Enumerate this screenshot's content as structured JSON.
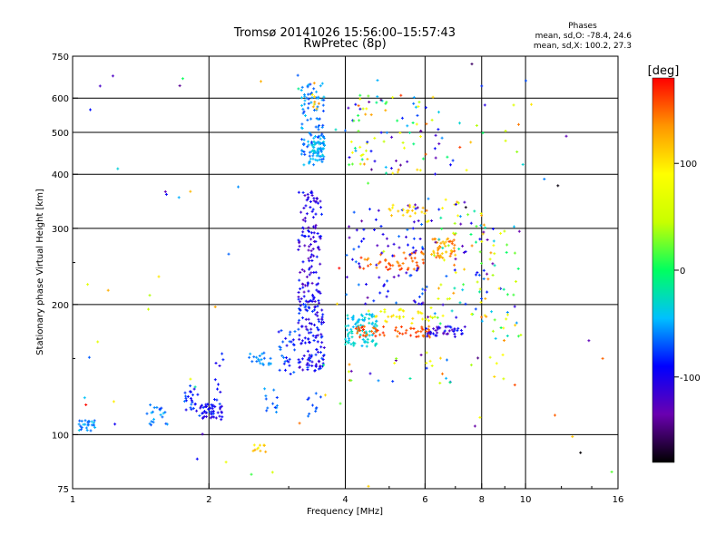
{
  "chart_data": {
    "type": "scatter",
    "title": "Tromsø 20141026 15:56:00–15:57:43",
    "subtitle": "RwPretec (8p)",
    "xlabel": "Frequency [MHz]",
    "ylabel": "Stationary phase Virtual Height [km]",
    "x_scale": "log",
    "y_scale": "log",
    "xlim": [
      1,
      16
    ],
    "ylim": [
      75,
      750
    ],
    "x_ticks": [
      1,
      2,
      4,
      6,
      8,
      10,
      16
    ],
    "y_ticks": [
      75,
      100,
      200,
      300,
      400,
      500,
      600,
      750
    ],
    "x_tick_labels": [
      "1",
      "2",
      "4",
      "6",
      "8",
      "10",
      "16"
    ],
    "y_tick_labels": [
      "75",
      "100",
      "200",
      "300",
      "400",
      "500",
      "600",
      "750"
    ],
    "grid": true,
    "phase_stats": {
      "heading": "Phases",
      "line_o": "mean, sd,O: -78.4, 24.6",
      "line_x": "mean, sd,X: 100.2, 27.3"
    },
    "colorbar": {
      "label": "[deg]",
      "range": [
        -180,
        180
      ],
      "ticks": [
        100,
        0,
        -100
      ],
      "tick_labels": [
        "100",
        "0",
        "-100"
      ],
      "colors": [
        "#000000",
        "#6a00b0",
        "#0000ff",
        "#00c0ff",
        "#00ff60",
        "#c8ff00",
        "#ffff00",
        "#ff9600",
        "#ff0000"
      ]
    },
    "clusters": [
      {
        "f": [
          1.03,
          1.12
        ],
        "h": [
          102,
          108
        ],
        "phase": [
          -75,
          -40
        ],
        "n": 25
      },
      {
        "f": [
          1.45,
          1.62
        ],
        "h": [
          105,
          118
        ],
        "phase": [
          -80,
          -40
        ],
        "n": 20
      },
      {
        "f": [
          1.75,
          1.92
        ],
        "h": [
          110,
          130
        ],
        "phase": [
          -110,
          -60
        ],
        "n": 25
      },
      {
        "f": [
          1.92,
          2.15
        ],
        "h": [
          108,
          118
        ],
        "phase": [
          -115,
          -70
        ],
        "n": 45
      },
      {
        "f": [
          2.05,
          2.15
        ],
        "h": [
          120,
          155
        ],
        "phase": [
          -110,
          -80
        ],
        "n": 10
      },
      {
        "f": [
          2.45,
          2.75
        ],
        "h": [
          145,
          155
        ],
        "phase": [
          -70,
          -45
        ],
        "n": 20
      },
      {
        "f": [
          2.45,
          2.7
        ],
        "h": [
          91,
          95
        ],
        "phase": [
          80,
          140
        ],
        "n": 10
      },
      {
        "f": [
          2.65,
          2.85
        ],
        "h": [
          110,
          130
        ],
        "phase": [
          -85,
          -50
        ],
        "n": 12
      },
      {
        "f": [
          2.85,
          3.1
        ],
        "h": [
          130,
          175
        ],
        "phase": [
          -100,
          -60
        ],
        "n": 30
      },
      {
        "f": [
          3.15,
          3.55
        ],
        "h": [
          200,
          370
        ],
        "phase": [
          -130,
          -80
        ],
        "n": 130
      },
      {
        "f": [
          3.15,
          3.6
        ],
        "h": [
          140,
          200
        ],
        "phase": [
          -120,
          -70
        ],
        "n": 120
      },
      {
        "f": [
          3.2,
          3.6
        ],
        "h": [
          420,
          650
        ],
        "phase": [
          -80,
          -40
        ],
        "n": 110
      },
      {
        "f": [
          3.35,
          3.6
        ],
        "h": [
          430,
          480
        ],
        "phase": [
          -60,
          -30
        ],
        "n": 40
      },
      {
        "f": [
          3.3,
          3.6
        ],
        "h": [
          110,
          125
        ],
        "phase": [
          -90,
          -60
        ],
        "n": 10
      },
      {
        "f": [
          3.35,
          3.5
        ],
        "h": [
          560,
          650
        ],
        "phase": [
          80,
          140
        ],
        "n": 8
      },
      {
        "f": [
          4.0,
          4.7
        ],
        "h": [
          160,
          190
        ],
        "phase": [
          -50,
          -20
        ],
        "n": 90
      },
      {
        "f": [
          4.2,
          6.2
        ],
        "h": [
          168,
          178
        ],
        "phase": [
          140,
          170
        ],
        "n": 60
      },
      {
        "f": [
          4.5,
          6.2
        ],
        "h": [
          180,
          195
        ],
        "phase": [
          60,
          110
        ],
        "n": 30
      },
      {
        "f": [
          4.2,
          6.0
        ],
        "h": [
          240,
          265
        ],
        "phase": [
          130,
          170
        ],
        "n": 50
      },
      {
        "f": [
          4.0,
          6.0
        ],
        "h": [
          200,
          340
        ],
        "phase": [
          -140,
          -60
        ],
        "n": 80
      },
      {
        "f": [
          5.0,
          6.0
        ],
        "h": [
          320,
          340
        ],
        "phase": [
          90,
          130
        ],
        "n": 20
      },
      {
        "f": [
          4.0,
          6.0
        ],
        "h": [
          400,
          610
        ],
        "phase": [
          -150,
          150
        ],
        "n": 80
      },
      {
        "f": [
          6.2,
          7.0
        ],
        "h": [
          255,
          285
        ],
        "phase": [
          110,
          160
        ],
        "n": 45
      },
      {
        "f": [
          6.0,
          7.5
        ],
        "h": [
          168,
          178
        ],
        "phase": [
          -130,
          -80
        ],
        "n": 40
      },
      {
        "f": [
          6.0,
          8.0
        ],
        "h": [
          180,
          350
        ],
        "phase": [
          -150,
          150
        ],
        "n": 80
      },
      {
        "f": [
          7.8,
          9.8
        ],
        "h": [
          165,
          310
        ],
        "phase": [
          -150,
          150
        ],
        "n": 60
      },
      {
        "f": [
          6.0,
          10.0
        ],
        "h": [
          400,
          600
        ],
        "phase": [
          -150,
          150
        ],
        "n": 25
      },
      {
        "f": [
          4.0,
          9.0
        ],
        "h": [
          130,
          155
        ],
        "phase": [
          -150,
          150
        ],
        "n": 30
      },
      {
        "f": [
          1.0,
          16.0
        ],
        "h": [
          80,
          720
        ],
        "phase": [
          -180,
          180
        ],
        "n": 60
      }
    ],
    "points": [
      {
        "f": 1.15,
        "h": 640,
        "phase": -120
      },
      {
        "f": 1.82,
        "h": 365,
        "phase": 120
      },
      {
        "f": 1.48,
        "h": 210,
        "phase": 40
      },
      {
        "f": 1.47,
        "h": 195,
        "phase": 50
      },
      {
        "f": 1.55,
        "h": 232,
        "phase": 100
      },
      {
        "f": 12.3,
        "h": 490,
        "phase": -130
      },
      {
        "f": 10.3,
        "h": 580,
        "phase": 100
      },
      {
        "f": 15.5,
        "h": 82,
        "phase": 20
      },
      {
        "f": 14.8,
        "h": 150,
        "phase": 150
      },
      {
        "f": 13.8,
        "h": 165,
        "phase": -130
      },
      {
        "f": 11.0,
        "h": 390,
        "phase": -60
      },
      {
        "f": 3.9,
        "h": 118,
        "phase": 20
      },
      {
        "f": 8.0,
        "h": 640,
        "phase": -80
      },
      {
        "f": 4.5,
        "h": 76,
        "phase": 110
      }
    ]
  }
}
